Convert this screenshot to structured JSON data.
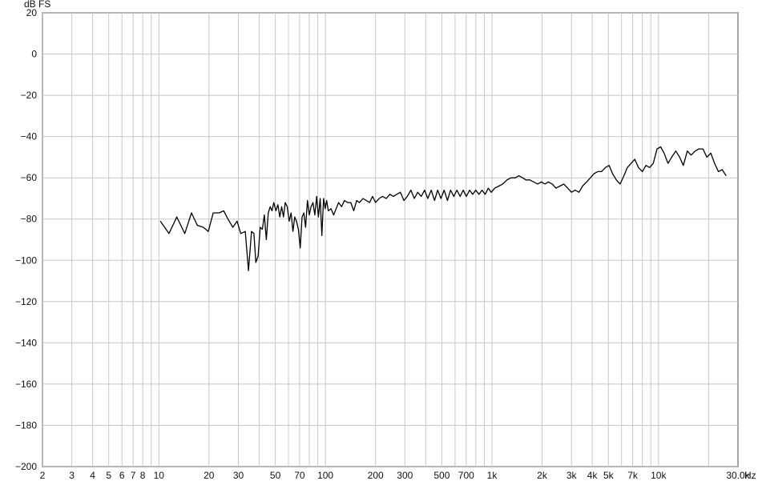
{
  "chart_data": {
    "type": "line",
    "xscale": "log",
    "xlim": [
      2,
      30000
    ],
    "ylim": [
      -200,
      20
    ],
    "grid": true,
    "ylabel": "dB FS",
    "xunit": "Hz",
    "x_ticks": [
      {
        "value": 2,
        "label": "2"
      },
      {
        "value": 3,
        "label": "3"
      },
      {
        "value": 4,
        "label": "4"
      },
      {
        "value": 5,
        "label": "5"
      },
      {
        "value": 6,
        "label": "6"
      },
      {
        "value": 7,
        "label": "7"
      },
      {
        "value": 8,
        "label": "8"
      },
      {
        "value": 10,
        "label": "10"
      },
      {
        "value": 20,
        "label": "20"
      },
      {
        "value": 30,
        "label": "30"
      },
      {
        "value": 50,
        "label": "50"
      },
      {
        "value": 70,
        "label": "70"
      },
      {
        "value": 100,
        "label": "100"
      },
      {
        "value": 200,
        "label": "200"
      },
      {
        "value": 300,
        "label": "300"
      },
      {
        "value": 500,
        "label": "500"
      },
      {
        "value": 700,
        "label": "700"
      },
      {
        "value": 1000,
        "label": "1k"
      },
      {
        "value": 2000,
        "label": "2k"
      },
      {
        "value": 3000,
        "label": "3k"
      },
      {
        "value": 4000,
        "label": "4k"
      },
      {
        "value": 5000,
        "label": "5k"
      },
      {
        "value": 7000,
        "label": "7k"
      },
      {
        "value": 10000,
        "label": "10k"
      },
      {
        "value": 30000,
        "label": "30.0k"
      }
    ],
    "x_gridlines": [
      2,
      3,
      4,
      5,
      6,
      7,
      8,
      9,
      10,
      20,
      30,
      40,
      50,
      60,
      70,
      80,
      90,
      100,
      200,
      300,
      400,
      500,
      600,
      700,
      800,
      900,
      1000,
      2000,
      3000,
      4000,
      5000,
      6000,
      7000,
      8000,
      9000,
      10000,
      20000
    ],
    "y_ticks": [
      20,
      0,
      -20,
      -40,
      -60,
      -80,
      -100,
      -120,
      -140,
      -160,
      -180,
      -200
    ],
    "series": [
      {
        "color": "#000000",
        "points": [
          [
            10.2,
            -81
          ],
          [
            11.5,
            -87
          ],
          [
            12.8,
            -79
          ],
          [
            14.3,
            -87
          ],
          [
            15.7,
            -77
          ],
          [
            17,
            -83
          ],
          [
            18.5,
            -84
          ],
          [
            19.8,
            -86
          ],
          [
            21.2,
            -77
          ],
          [
            23,
            -77
          ],
          [
            24.5,
            -76
          ],
          [
            26,
            -80
          ],
          [
            27.8,
            -84
          ],
          [
            29.5,
            -81
          ],
          [
            31,
            -87
          ],
          [
            33,
            -86
          ],
          [
            34.5,
            -105
          ],
          [
            36,
            -86
          ],
          [
            37.2,
            -87
          ],
          [
            38.2,
            -101
          ],
          [
            39.4,
            -98
          ],
          [
            40.6,
            -84
          ],
          [
            41.8,
            -85
          ],
          [
            43,
            -78
          ],
          [
            44.2,
            -90
          ],
          [
            45.4,
            -77
          ],
          [
            46.6,
            -74
          ],
          [
            47.8,
            -76
          ],
          [
            49,
            -72
          ],
          [
            50.4,
            -76
          ],
          [
            51.8,
            -73
          ],
          [
            53.2,
            -79
          ],
          [
            54.6,
            -74
          ],
          [
            56,
            -79
          ],
          [
            57.4,
            -72
          ],
          [
            59,
            -74
          ],
          [
            60.6,
            -81
          ],
          [
            62.2,
            -77
          ],
          [
            63.8,
            -86
          ],
          [
            65.4,
            -79
          ],
          [
            67,
            -81
          ],
          [
            68.8,
            -85
          ],
          [
            70.6,
            -94
          ],
          [
            72.4,
            -79
          ],
          [
            74.2,
            -77
          ],
          [
            76,
            -84
          ],
          [
            78,
            -71
          ],
          [
            80,
            -78
          ],
          [
            82,
            -74
          ],
          [
            84.2,
            -72
          ],
          [
            86.4,
            -78
          ],
          [
            88.6,
            -69
          ],
          [
            90.8,
            -79
          ],
          [
            93,
            -70
          ],
          [
            95.2,
            -88
          ],
          [
            97.4,
            -70
          ],
          [
            99.6,
            -75
          ],
          [
            101.8,
            -71
          ],
          [
            104,
            -76
          ],
          [
            108,
            -75
          ],
          [
            112,
            -78
          ],
          [
            116,
            -75
          ],
          [
            120,
            -72
          ],
          [
            125,
            -74
          ],
          [
            130,
            -71
          ],
          [
            136,
            -72
          ],
          [
            142,
            -72
          ],
          [
            148,
            -76
          ],
          [
            154,
            -71
          ],
          [
            160,
            -72
          ],
          [
            168,
            -70
          ],
          [
            176,
            -71
          ],
          [
            184,
            -72
          ],
          [
            192,
            -69
          ],
          [
            200,
            -72
          ],
          [
            210,
            -70
          ],
          [
            220,
            -69
          ],
          [
            232,
            -70
          ],
          [
            244,
            -68
          ],
          [
            256,
            -69
          ],
          [
            268,
            -68
          ],
          [
            282,
            -67
          ],
          [
            296,
            -71
          ],
          [
            310,
            -69
          ],
          [
            326,
            -66
          ],
          [
            342,
            -70
          ],
          [
            358,
            -67
          ],
          [
            376,
            -69
          ],
          [
            394,
            -66
          ],
          [
            412,
            -70
          ],
          [
            432,
            -66
          ],
          [
            452,
            -71
          ],
          [
            472,
            -66
          ],
          [
            494,
            -70
          ],
          [
            516,
            -66
          ],
          [
            540,
            -71
          ],
          [
            564,
            -66
          ],
          [
            590,
            -69
          ],
          [
            616,
            -66
          ],
          [
            644,
            -69
          ],
          [
            672,
            -66
          ],
          [
            702,
            -69
          ],
          [
            734,
            -66
          ],
          [
            766,
            -68
          ],
          [
            800,
            -66
          ],
          [
            836,
            -68
          ],
          [
            872,
            -66
          ],
          [
            910,
            -68
          ],
          [
            950,
            -65
          ],
          [
            990,
            -67
          ],
          [
            1040,
            -65
          ],
          [
            1100,
            -64
          ],
          [
            1160,
            -63
          ],
          [
            1230,
            -61
          ],
          [
            1300,
            -60
          ],
          [
            1380,
            -60
          ],
          [
            1450,
            -59
          ],
          [
            1530,
            -60
          ],
          [
            1600,
            -61
          ],
          [
            1690,
            -61
          ],
          [
            1780,
            -62
          ],
          [
            1880,
            -63
          ],
          [
            1980,
            -62
          ],
          [
            2080,
            -63
          ],
          [
            2180,
            -62
          ],
          [
            2300,
            -63
          ],
          [
            2420,
            -65
          ],
          [
            2560,
            -64
          ],
          [
            2700,
            -63
          ],
          [
            2850,
            -65
          ],
          [
            3000,
            -67
          ],
          [
            3160,
            -66
          ],
          [
            3330,
            -67
          ],
          [
            3500,
            -64
          ],
          [
            3700,
            -62
          ],
          [
            3900,
            -60
          ],
          [
            4100,
            -58
          ],
          [
            4320,
            -57
          ],
          [
            4550,
            -57
          ],
          [
            4800,
            -55
          ],
          [
            5050,
            -54
          ],
          [
            5300,
            -58
          ],
          [
            5580,
            -61
          ],
          [
            5880,
            -63
          ],
          [
            6200,
            -59
          ],
          [
            6500,
            -55
          ],
          [
            6850,
            -53
          ],
          [
            7200,
            -51
          ],
          [
            7580,
            -55
          ],
          [
            8000,
            -57
          ],
          [
            8400,
            -54
          ],
          [
            8850,
            -55
          ],
          [
            9300,
            -53
          ],
          [
            9800,
            -46
          ],
          [
            10300,
            -45
          ],
          [
            10800,
            -48
          ],
          [
            11400,
            -53
          ],
          [
            12000,
            -50
          ],
          [
            12700,
            -47
          ],
          [
            13400,
            -50
          ],
          [
            14100,
            -54
          ],
          [
            14900,
            -47
          ],
          [
            15700,
            -49
          ],
          [
            16600,
            -47
          ],
          [
            17500,
            -46
          ],
          [
            18500,
            -46
          ],
          [
            19500,
            -50
          ],
          [
            20600,
            -48
          ],
          [
            21700,
            -53
          ],
          [
            22900,
            -57
          ],
          [
            24100,
            -56
          ],
          [
            25500,
            -59
          ]
        ]
      }
    ]
  }
}
